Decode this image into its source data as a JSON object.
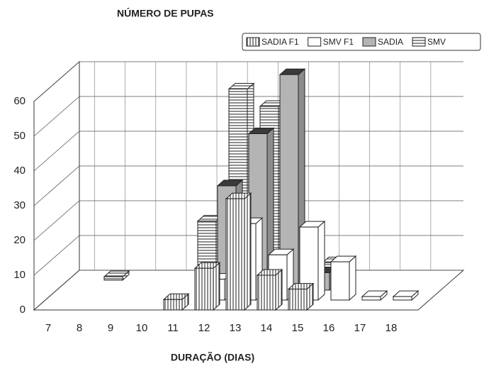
{
  "chart_data": {
    "type": "bar3d",
    "y_label": "NÚMERO DE PUPAS",
    "x_label": "DURAÇÃO (DIAS)",
    "categories": [
      "7",
      "8",
      "9",
      "10",
      "11",
      "12",
      "13",
      "14",
      "15",
      "16",
      "17",
      "18"
    ],
    "series": [
      {
        "name": "SADIA F1",
        "color": "#ffffff",
        "hatch": "vertical",
        "values": [
          null,
          null,
          null,
          null,
          3,
          12,
          32,
          10,
          6,
          null,
          null,
          null
        ]
      },
      {
        "name": "SMV F1",
        "color": "#ffffff",
        "hatch": "none",
        "values": [
          null,
          null,
          null,
          null,
          null,
          6,
          22,
          13,
          21,
          11,
          1,
          1
        ]
      },
      {
        "name": "SADIA",
        "color": "#b4b4b4",
        "hatch": "none",
        "values": [
          null,
          null,
          null,
          null,
          null,
          30,
          45,
          62,
          5,
          null,
          null,
          null
        ]
      },
      {
        "name": "SMV",
        "color": "#ffffff",
        "hatch": "horizontal",
        "values": [
          null,
          1,
          null,
          null,
          17,
          55,
          50,
          15,
          5,
          null,
          null,
          null
        ]
      }
    ],
    "ylim": [
      0,
      60
    ],
    "yticks": [
      0,
      10,
      20,
      30,
      40,
      50,
      60
    ]
  }
}
